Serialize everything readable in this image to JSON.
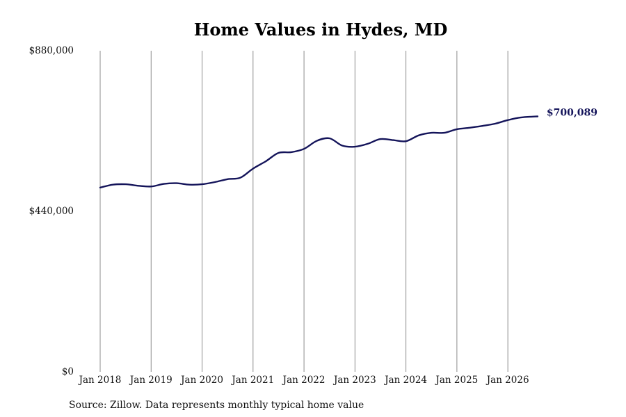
{
  "chart_data": {
    "type": "line",
    "title": "Home Values in Hydes, MD",
    "source": "Source: Zillow. Data represents monthly typical home value",
    "ylim": [
      0,
      880000
    ],
    "y_ticks": [
      0,
      440000,
      880000
    ],
    "y_tick_labels": [
      "$0",
      "$440,000",
      "$880,000"
    ],
    "x_range": [
      "2018-01",
      "2026-09"
    ],
    "x_ticks": [
      "2018-01",
      "2019-01",
      "2020-01",
      "2021-01",
      "2022-01",
      "2023-01",
      "2024-01",
      "2025-01",
      "2026-01"
    ],
    "x_tick_labels": [
      "Jan 2018",
      "Jan 2019",
      "Jan 2020",
      "Jan 2021",
      "Jan 2022",
      "Jan 2023",
      "Jan 2024",
      "Jan 2025",
      "Jan 2026"
    ],
    "grid": "vertical",
    "line_color": "#14145a",
    "end_label": "$700,089",
    "series": [
      {
        "x": [
          "2018-01",
          "2018-04",
          "2018-07",
          "2018-10",
          "2019-01",
          "2019-04",
          "2019-07",
          "2019-10",
          "2020-01",
          "2020-04",
          "2020-07",
          "2020-10",
          "2021-01",
          "2021-04",
          "2021-07",
          "2021-10",
          "2022-01",
          "2022-04",
          "2022-07",
          "2022-10",
          "2023-01",
          "2023-04",
          "2023-07",
          "2023-10",
          "2024-01",
          "2024-04",
          "2024-07",
          "2024-10",
          "2025-01",
          "2025-04",
          "2025-07",
          "2025-10",
          "2026-01",
          "2026-04",
          "2026-08"
        ],
        "values": [
          505000,
          513000,
          514000,
          510000,
          508000,
          515000,
          517000,
          513000,
          514000,
          520000,
          528000,
          532000,
          557000,
          577000,
          600000,
          602000,
          611000,
          633000,
          640000,
          620000,
          617000,
          625000,
          638000,
          635000,
          632000,
          648000,
          655000,
          655000,
          665000,
          669000,
          674000,
          680000,
          690000,
          697000,
          700089
        ]
      }
    ]
  }
}
